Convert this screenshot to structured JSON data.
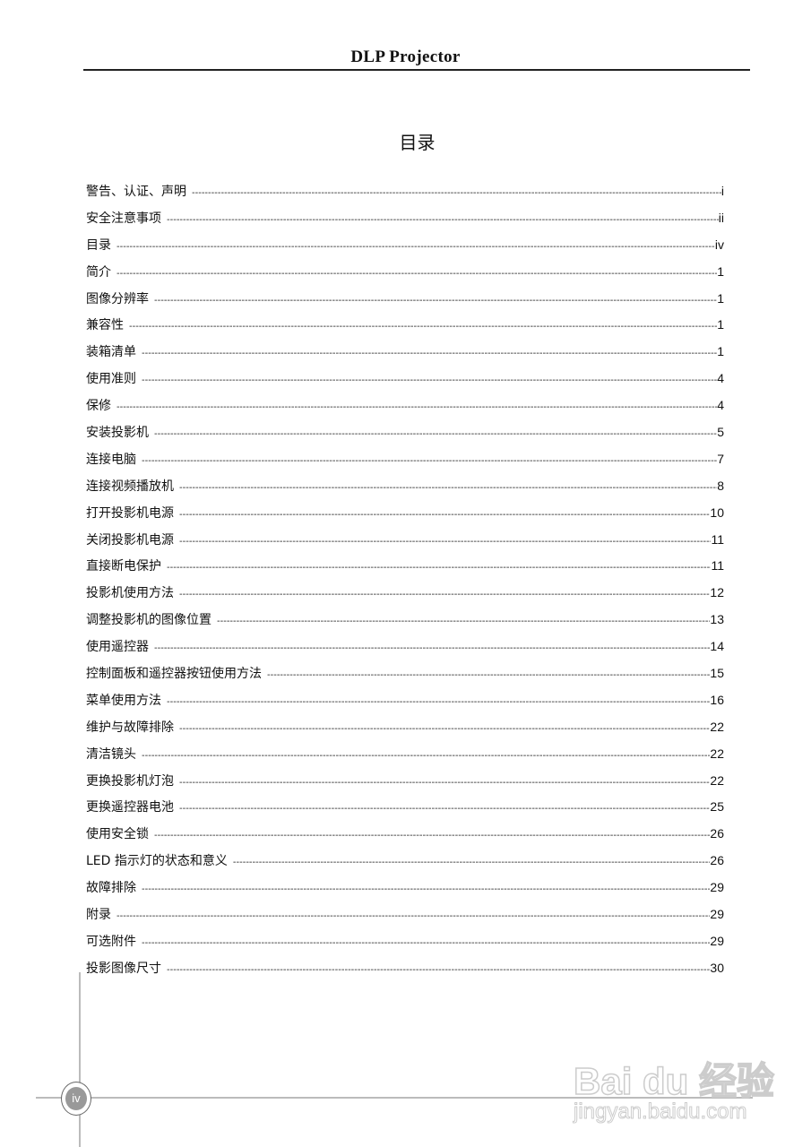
{
  "header": {
    "title": "DLP Projector"
  },
  "document": {
    "title": "目录"
  },
  "toc": [
    {
      "label": "警告、认证、声明",
      "page": "i"
    },
    {
      "label": "安全注意事项",
      "page": "ii"
    },
    {
      "label": "目录",
      "page": "iv"
    },
    {
      "label": "简介",
      "page": "1"
    },
    {
      "label": "图像分辨率",
      "page": "1"
    },
    {
      "label": "兼容性",
      "page": "1"
    },
    {
      "label": "装箱清单",
      "page": "1"
    },
    {
      "label": "使用准则",
      "page": "4"
    },
    {
      "label": "保修",
      "page": "4"
    },
    {
      "label": "安装投影机",
      "page": "5"
    },
    {
      "label": "连接电脑",
      "page": "7"
    },
    {
      "label": "连接视频播放机",
      "page": "8"
    },
    {
      "label": "打开投影机电源",
      "page": "10"
    },
    {
      "label": "关闭投影机电源",
      "page": "11"
    },
    {
      "label": "直接断电保护",
      "page": "11"
    },
    {
      "label": "投影机使用方法",
      "page": "12"
    },
    {
      "label": "调整投影机的图像位置",
      "page": "13"
    },
    {
      "label": "使用遥控器",
      "page": "14"
    },
    {
      "label": "控制面板和遥控器按钮使用方法",
      "page": "15"
    },
    {
      "label": "菜单使用方法",
      "page": "16"
    },
    {
      "label": "维护与故障排除",
      "page": "22"
    },
    {
      "label": "清洁镜头",
      "page": "22"
    },
    {
      "label": "更换投影机灯泡",
      "page": "22"
    },
    {
      "label": "更换遥控器电池",
      "page": "25"
    },
    {
      "label": "使用安全锁",
      "page": "26"
    },
    {
      "label": "LED 指示灯的状态和意义",
      "page": "26"
    },
    {
      "label": "故障排除",
      "page": "29"
    },
    {
      "label": "附录",
      "page": "29"
    },
    {
      "label": "可选附件",
      "page": "29"
    },
    {
      "label": "投影图像尺寸",
      "page": "30"
    }
  ],
  "footer": {
    "page_number": "iv"
  },
  "watermark": {
    "brand": "Bai du 经验",
    "url": "jingyan.baidu.com"
  }
}
